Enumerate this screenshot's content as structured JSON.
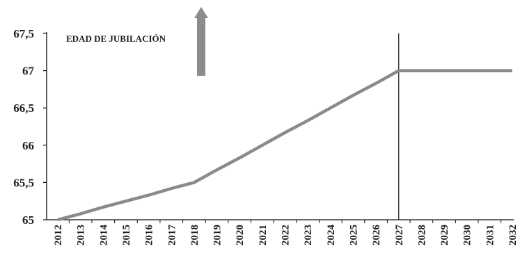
{
  "chart_data": {
    "type": "line",
    "title": "EDAD DE JUBILACIÓN",
    "xlabel": "",
    "ylabel": "",
    "x": [
      "2012",
      "2013",
      "2014",
      "2015",
      "2016",
      "2017",
      "2018",
      "2019",
      "2020",
      "2021",
      "2022",
      "2023",
      "2024",
      "2025",
      "2026",
      "2027",
      "2028",
      "2029",
      "2030",
      "2031",
      "2032"
    ],
    "series": [
      {
        "values": [
          65,
          65.08,
          65.17,
          65.25,
          65.33,
          65.42,
          65.5,
          65.67,
          65.83,
          66,
          66.17,
          66.33,
          66.5,
          66.67,
          66.83,
          67,
          67,
          67,
          67,
          67,
          67
        ]
      }
    ],
    "ylim": [
      65,
      67.5
    ],
    "yticks": [
      "65",
      "65,5",
      "66",
      "66,5",
      "67",
      "67,5"
    ],
    "ytick_values": [
      65,
      65.5,
      66,
      66.5,
      67,
      67.5
    ],
    "marker_year": "2027",
    "grid": false,
    "colors": {
      "line": "#8a8a8a",
      "axis": "#111111",
      "arrow": "#8c8c8c",
      "marker_line": "#222222",
      "text": "#1f1f1f"
    }
  }
}
